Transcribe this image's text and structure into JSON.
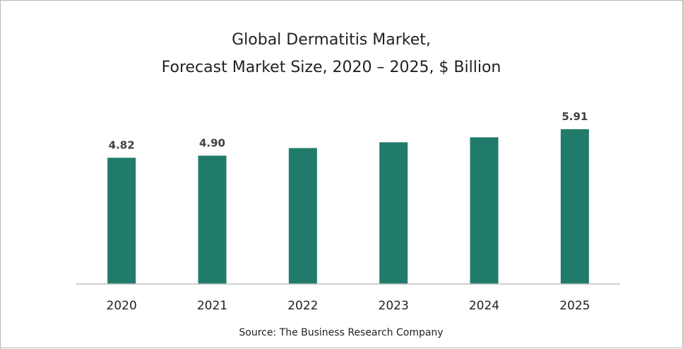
{
  "chart_data": {
    "type": "bar",
    "title": [
      "Global Dermatitis Market,",
      "Forecast Market Size, 2020 – 2025, $ Billion"
    ],
    "categories": [
      "2020",
      "2021",
      "2022",
      "2023",
      "2024",
      "2025"
    ],
    "values": [
      4.82,
      4.9,
      5.19,
      5.41,
      5.6,
      5.91
    ],
    "data_labels": [
      "4.82",
      "4.90",
      "",
      "",
      "",
      "5.91"
    ],
    "ylim": [
      0,
      6.5
    ],
    "grid": false,
    "legend": "none",
    "source": "Source: The Business Research Company",
    "colors": {
      "bar": "#207b6b",
      "axis": "#bfbfbf",
      "frame": "#b7b7b7"
    }
  }
}
